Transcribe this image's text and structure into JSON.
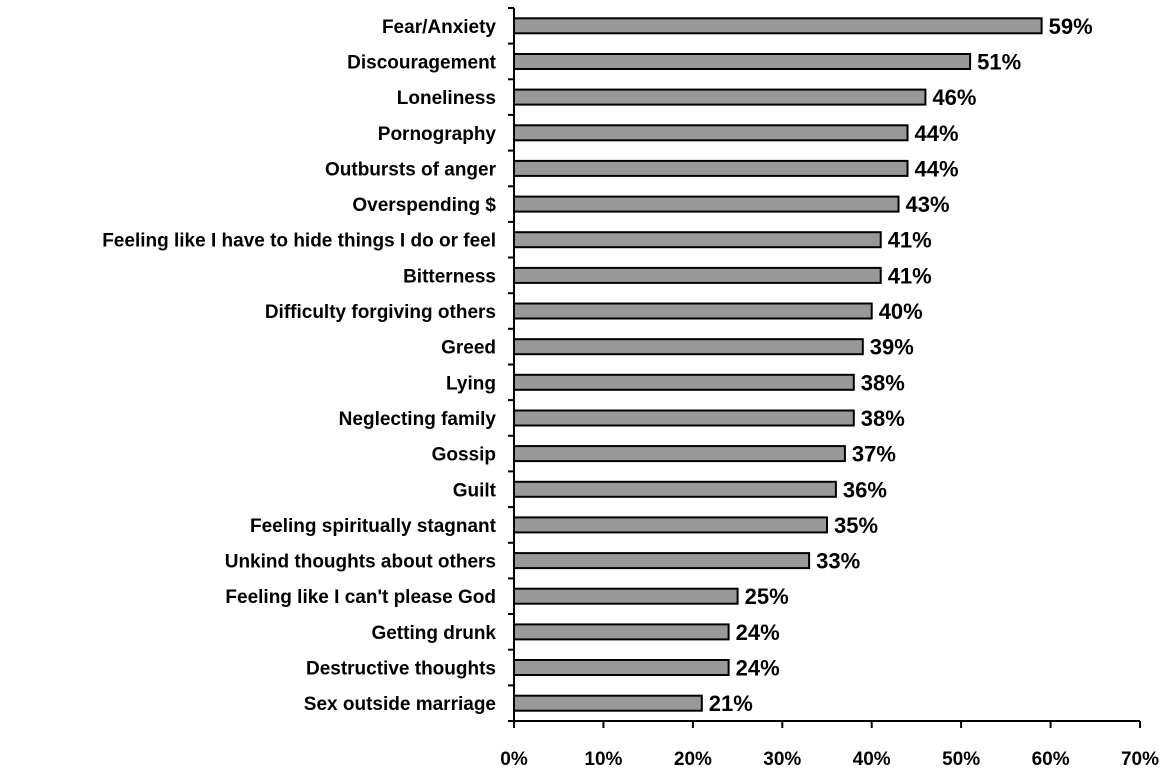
{
  "chart_data": {
    "type": "bar",
    "orientation": "horizontal",
    "categories": [
      "Fear/Anxiety",
      "Discouragement",
      "Loneliness",
      "Pornography",
      "Outbursts of anger",
      "Overspending $",
      "Feeling like I have to hide things I do or feel",
      "Bitterness",
      "Difficulty forgiving others",
      "Greed",
      "Lying",
      "Neglecting family",
      "Gossip",
      "Guilt",
      "Feeling spiritually stagnant",
      "Unkind thoughts about others",
      "Feeling like I can't please God",
      "Getting drunk",
      "Destructive thoughts",
      "Sex outside marriage"
    ],
    "values": [
      59,
      51,
      46,
      44,
      44,
      43,
      41,
      41,
      40,
      39,
      38,
      38,
      37,
      36,
      35,
      33,
      25,
      24,
      24,
      21
    ],
    "value_labels": [
      "59%",
      "51%",
      "46%",
      "44%",
      "44%",
      "43%",
      "41%",
      "41%",
      "40%",
      "39%",
      "38%",
      "38%",
      "37%",
      "36%",
      "35%",
      "33%",
      "25%",
      "24%",
      "24%",
      "21%"
    ],
    "xlim": [
      0,
      70
    ],
    "x_ticks": [
      0,
      10,
      20,
      30,
      40,
      50,
      60,
      70
    ],
    "x_tick_labels": [
      "0%",
      "10%",
      "20%",
      "30%",
      "40%",
      "50%",
      "60%",
      "70%"
    ],
    "title": "",
    "xlabel": "",
    "ylabel": "",
    "grid": false,
    "legend": "none",
    "bar_color": "#999999",
    "bar_edge_color": "#000000"
  }
}
